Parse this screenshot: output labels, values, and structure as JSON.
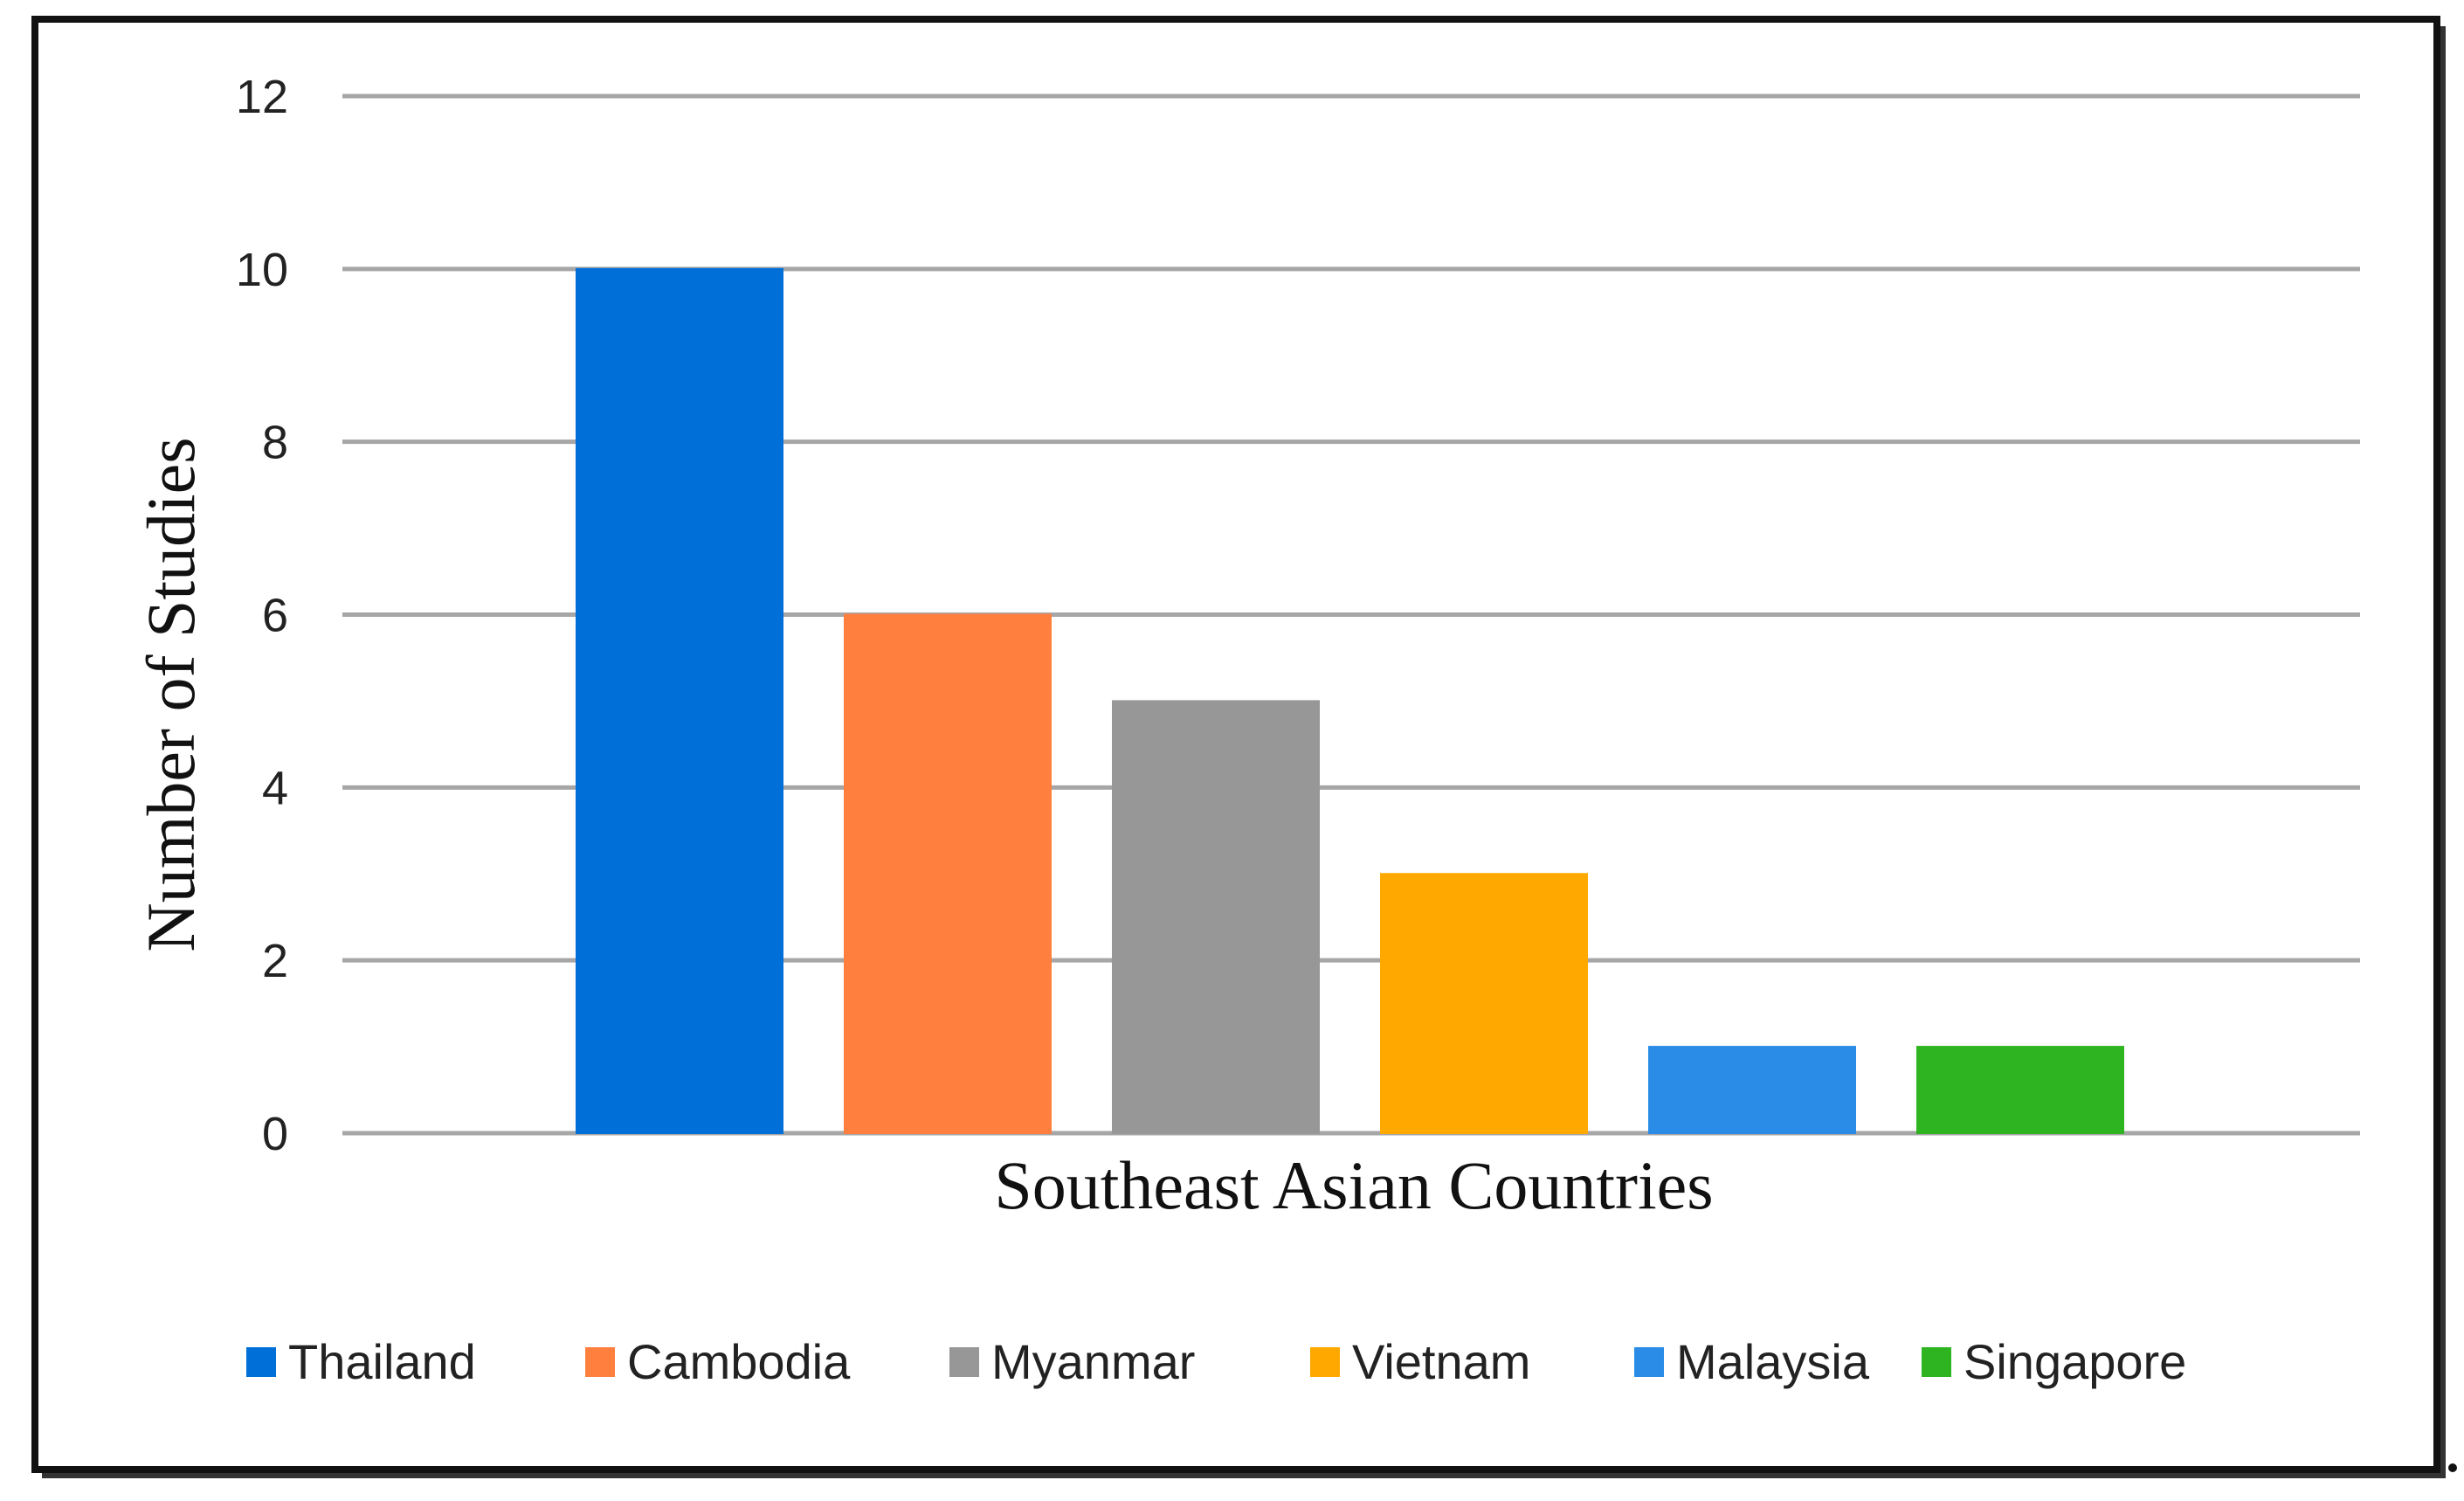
{
  "chart_data": {
    "type": "bar",
    "categories": [
      "Thailand",
      "Cambodia",
      "Myanmar",
      "Vietnam",
      "Malaysia",
      "Singapore"
    ],
    "values": [
      10,
      6,
      5,
      3,
      1,
      1
    ],
    "colors": [
      "#0070D8",
      "#FF7F3F",
      "#979797",
      "#FFA800",
      "#2A8CE6",
      "#2DB420"
    ],
    "xlabel": "Southeast Asian Countries",
    "ylabel": "Number of Studies",
    "ylim": [
      0,
      12
    ],
    "yticks": [
      "0",
      "2",
      "4",
      "6",
      "8",
      "10",
      "12"
    ],
    "grid": true,
    "legend_position": "bottom"
  }
}
